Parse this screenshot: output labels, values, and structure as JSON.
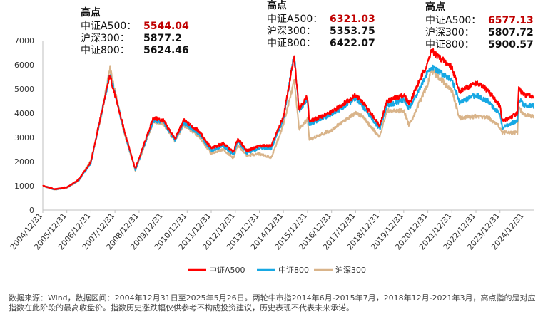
{
  "chart_data": {
    "type": "line",
    "ylim": [
      0,
      7000
    ],
    "y_ticks": [
      "0",
      "1000",
      "2000",
      "3000",
      "4000",
      "5000",
      "6000",
      "7000"
    ],
    "x_ticks": [
      "2004/12/31",
      "2005/12/31",
      "2006/12/31",
      "2007/12/31",
      "2008/12/31",
      "2009/12/31",
      "2010/12/31",
      "2011/12/31",
      "2012/12/31",
      "2013/12/31",
      "2014/12/31",
      "2015/12/31",
      "2016/12/31",
      "2017/12/31",
      "2018/12/31",
      "2019/12/31",
      "2020/12/31",
      "2021/12/31",
      "2022/12/31",
      "2023/12/31",
      "2024/12/31"
    ],
    "x_range": [
      "2004-12-31",
      "2025-05-26"
    ],
    "grid": false,
    "legend_position": "bottom",
    "series": [
      {
        "name": "中证A500",
        "color": "#ff0000",
        "points": [
          [
            "2004-12-31",
            1000
          ],
          [
            "2005-06-30",
            860
          ],
          [
            "2005-12-31",
            940
          ],
          [
            "2006-06-30",
            1250
          ],
          [
            "2006-12-31",
            2000
          ],
          [
            "2007-05-31",
            3900
          ],
          [
            "2007-10-16",
            5544
          ],
          [
            "2008-04-30",
            3500
          ],
          [
            "2008-11-04",
            1700
          ],
          [
            "2009-08-04",
            3800
          ],
          [
            "2009-12-31",
            3700
          ],
          [
            "2010-06-30",
            2950
          ],
          [
            "2010-11-10",
            3700
          ],
          [
            "2011-06-30",
            3250
          ],
          [
            "2011-12-31",
            2550
          ],
          [
            "2012-06-30",
            2750
          ],
          [
            "2012-12-04",
            2400
          ],
          [
            "2013-02-06",
            2950
          ],
          [
            "2013-06-25",
            2450
          ],
          [
            "2013-12-31",
            2650
          ],
          [
            "2014-06-30",
            2650
          ],
          [
            "2014-12-31",
            3850
          ],
          [
            "2015-06-12",
            6321
          ],
          [
            "2015-08-26",
            4200
          ],
          [
            "2015-12-31",
            4700
          ],
          [
            "2016-01-28",
            3650
          ],
          [
            "2016-12-31",
            4050
          ],
          [
            "2017-12-31",
            4750
          ],
          [
            "2018-03-31",
            4500
          ],
          [
            "2018-12-31",
            3500
          ],
          [
            "2019-04-19",
            4500
          ],
          [
            "2019-12-31",
            4750
          ],
          [
            "2020-03-23",
            4400
          ],
          [
            "2020-12-31",
            6100
          ],
          [
            "2021-02-18",
            6577
          ],
          [
            "2021-12-31",
            5900
          ],
          [
            "2022-04-26",
            4900
          ],
          [
            "2022-12-31",
            5250
          ],
          [
            "2023-06-30",
            4950
          ],
          [
            "2023-12-31",
            4300
          ],
          [
            "2024-02-05",
            3650
          ],
          [
            "2024-09-23",
            4000
          ],
          [
            "2024-10-08",
            5000
          ],
          [
            "2024-12-31",
            4750
          ],
          [
            "2025-05-26",
            4700
          ]
        ]
      },
      {
        "name": "中证800",
        "color": "#17a8e3",
        "points": [
          [
            "2004-12-31",
            1000
          ],
          [
            "2005-06-30",
            850
          ],
          [
            "2005-12-31",
            930
          ],
          [
            "2006-06-30",
            1230
          ],
          [
            "2006-12-31",
            1950
          ],
          [
            "2007-05-31",
            3850
          ],
          [
            "2007-10-16",
            5624
          ],
          [
            "2008-04-30",
            3450
          ],
          [
            "2008-11-04",
            1650
          ],
          [
            "2009-08-04",
            3700
          ],
          [
            "2009-12-31",
            3650
          ],
          [
            "2010-06-30",
            2900
          ],
          [
            "2010-11-10",
            3600
          ],
          [
            "2011-06-30",
            3150
          ],
          [
            "2011-12-31",
            2450
          ],
          [
            "2012-06-30",
            2650
          ],
          [
            "2012-12-04",
            2300
          ],
          [
            "2013-02-06",
            2850
          ],
          [
            "2013-06-25",
            2350
          ],
          [
            "2013-12-31",
            2550
          ],
          [
            "2014-06-30",
            2550
          ],
          [
            "2014-12-31",
            3750
          ],
          [
            "2015-06-12",
            6422
          ],
          [
            "2015-08-26",
            4100
          ],
          [
            "2015-12-31",
            4600
          ],
          [
            "2016-01-28",
            3550
          ],
          [
            "2016-12-31",
            3950
          ],
          [
            "2017-12-31",
            4600
          ],
          [
            "2018-03-31",
            4350
          ],
          [
            "2018-12-31",
            3350
          ],
          [
            "2019-04-19",
            4300
          ],
          [
            "2019-12-31",
            4550
          ],
          [
            "2020-03-23",
            4200
          ],
          [
            "2020-12-31",
            5700
          ],
          [
            "2021-02-18",
            5900
          ],
          [
            "2021-12-31",
            5400
          ],
          [
            "2022-04-26",
            4450
          ],
          [
            "2022-12-31",
            4750
          ],
          [
            "2023-06-30",
            4500
          ],
          [
            "2023-12-31",
            3950
          ],
          [
            "2024-02-05",
            3400
          ],
          [
            "2024-09-23",
            3700
          ],
          [
            "2024-10-08",
            4600
          ],
          [
            "2024-12-31",
            4350
          ],
          [
            "2025-05-26",
            4300
          ]
        ]
      },
      {
        "name": "沪深300",
        "color": "#d9b48a",
        "points": [
          [
            "2004-12-31",
            1000
          ],
          [
            "2005-06-30",
            850
          ],
          [
            "2005-12-31",
            920
          ],
          [
            "2006-06-30",
            1220
          ],
          [
            "2006-12-31",
            2040
          ],
          [
            "2007-05-31",
            3800
          ],
          [
            "2007-10-16",
            5877
          ],
          [
            "2008-04-30",
            3400
          ],
          [
            "2008-11-04",
            1630
          ],
          [
            "2009-08-04",
            3650
          ],
          [
            "2009-12-31",
            3575
          ],
          [
            "2010-06-30",
            2850
          ],
          [
            "2010-11-10",
            3500
          ],
          [
            "2011-06-30",
            3050
          ],
          [
            "2011-12-31",
            2345
          ],
          [
            "2012-06-30",
            2500
          ],
          [
            "2012-12-04",
            2150
          ],
          [
            "2013-02-06",
            2700
          ],
          [
            "2013-06-25",
            2250
          ],
          [
            "2013-12-31",
            2330
          ],
          [
            "2014-06-30",
            2165
          ],
          [
            "2014-12-31",
            3533
          ],
          [
            "2015-06-12",
            5354
          ],
          [
            "2015-08-26",
            3350
          ],
          [
            "2015-12-31",
            3731
          ],
          [
            "2016-01-28",
            2900
          ],
          [
            "2016-12-31",
            3310
          ],
          [
            "2017-12-31",
            4030
          ],
          [
            "2018-03-31",
            3900
          ],
          [
            "2018-12-31",
            3010
          ],
          [
            "2019-04-19",
            4100
          ],
          [
            "2019-12-31",
            4096
          ],
          [
            "2020-03-23",
            3500
          ],
          [
            "2020-12-31",
            5211
          ],
          [
            "2021-02-18",
            5808
          ],
          [
            "2021-12-31",
            4940
          ],
          [
            "2022-04-26",
            3800
          ],
          [
            "2022-12-31",
            3870
          ],
          [
            "2023-06-30",
            3840
          ],
          [
            "2023-12-31",
            3431
          ],
          [
            "2024-02-05",
            3200
          ],
          [
            "2024-09-23",
            3200
          ],
          [
            "2024-10-08",
            4256
          ],
          [
            "2024-12-31",
            3935
          ],
          [
            "2025-05-26",
            3880
          ]
        ]
      }
    ],
    "annotations": [
      {
        "title": "高点",
        "rows": [
          {
            "label": "中证A500：",
            "value": "5544.04",
            "highlight": true
          },
          {
            "label": "沪深300：",
            "value": "5877.2",
            "highlight": false
          },
          {
            "label": "中证800：",
            "value": "5624.46",
            "highlight": false
          }
        ]
      },
      {
        "title": "高点",
        "rows": [
          {
            "label": "中证A500：",
            "value": "6321.03",
            "highlight": true
          },
          {
            "label": "沪深300：",
            "value": "5353.75",
            "highlight": false
          },
          {
            "label": "中证800：",
            "value": "6422.07",
            "highlight": false
          }
        ]
      },
      {
        "title": "高点",
        "rows": [
          {
            "label": "中证A500：",
            "value": "6577.13",
            "highlight": true
          },
          {
            "label": "沪深300：",
            "value": "5807.72",
            "highlight": false
          },
          {
            "label": "中证800：",
            "value": "5900.57",
            "highlight": false
          }
        ]
      }
    ]
  },
  "footnote": "数据来源：Wind，数据区间：2004年12月31日至2025年5月26日。两轮牛市指2014年6月-2015年7月，2018年12月-2021年3月，高点指的是对应指数在此阶段的最高收盘价。指数历史涨跌幅仅供参考不构成投资建议，历史表现不代表未来承诺。"
}
